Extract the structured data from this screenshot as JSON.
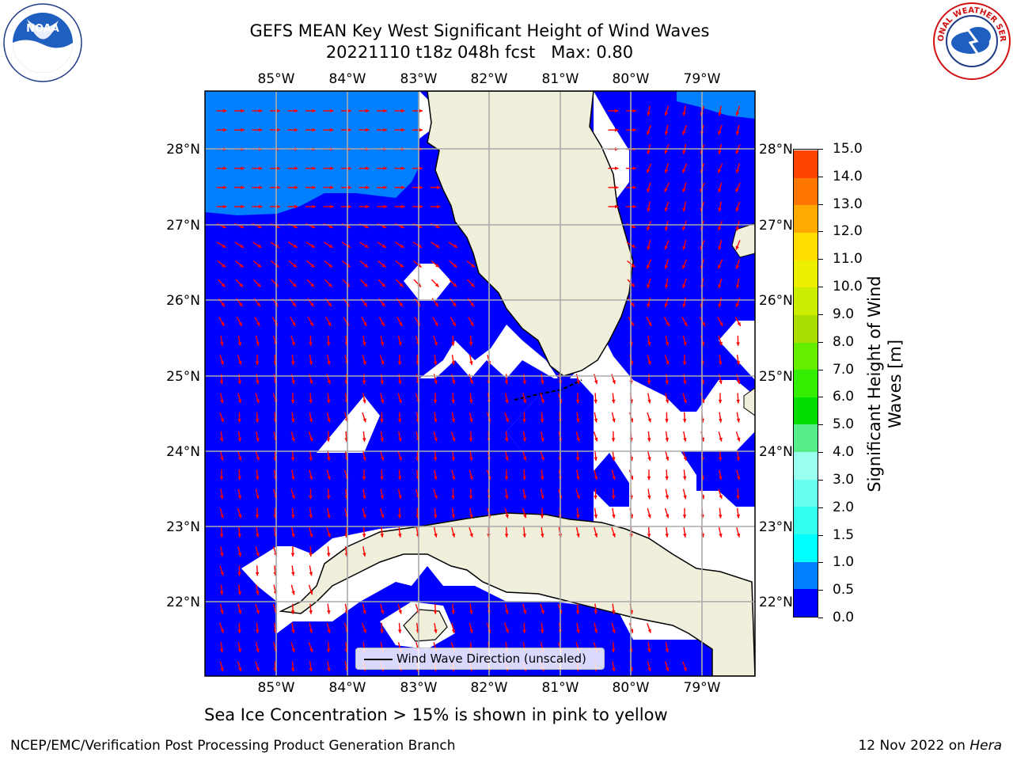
{
  "title": {
    "line1": "GEFS MEAN Key West Significant Height of Wind Waves",
    "line2": "20221110 t18z 048h fcst   Max: 0.80"
  },
  "logos": {
    "left": "noaa-logo",
    "left_text": "NOAA",
    "right": "nws-logo",
    "right_text": "NATIONAL WEATHER SERVICE"
  },
  "map": {
    "lon_labels": [
      "85°W",
      "84°W",
      "83°W",
      "82°W",
      "81°W",
      "80°W",
      "79°W"
    ],
    "lat_labels": [
      "28°N",
      "27°N",
      "26°N",
      "25°N",
      "24°N",
      "23°N",
      "22°N"
    ],
    "colors": {
      "low": "#0000ff",
      "mid": "#0080ff",
      "land": "#efefdc",
      "arrow": "#ff0000",
      "grid": "#aaaaaa"
    }
  },
  "legend": {
    "label": "Wind Wave Direction (unscaled)"
  },
  "colorbar": {
    "ticks": [
      "0.0",
      "0.5",
      "1.0",
      "1.5",
      "2.0",
      "3.0",
      "4.0",
      "5.0",
      "6.0",
      "7.0",
      "8.0",
      "9.0",
      "10.0",
      "11.0",
      "12.0",
      "13.0",
      "14.0",
      "15.0"
    ],
    "colors": [
      "#0000ff",
      "#0080ff",
      "#00ffff",
      "#33ffee",
      "#66ffee",
      "#99ffee",
      "#55ee88",
      "#00dd00",
      "#33ee00",
      "#66ee00",
      "#aadd00",
      "#ccee00",
      "#eeee00",
      "#ffdd00",
      "#ffaa00",
      "#ff7700",
      "#ff4400"
    ],
    "label_line1": "Significant Height of Wind",
    "label_line2": "Waves [m]"
  },
  "caption": "Sea Ice Concentration > 15% is shown in pink to yellow",
  "credits": {
    "left": "NCEP/EMC/Verification Post Processing Product Generation Branch",
    "right_date": "12 Nov 2022 on ",
    "right_machine": "Hera"
  }
}
